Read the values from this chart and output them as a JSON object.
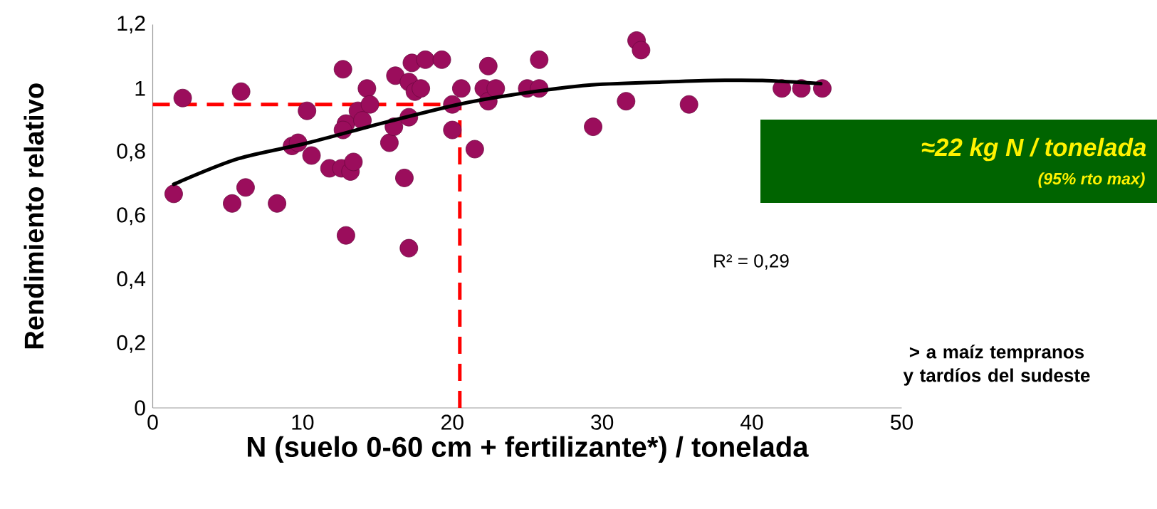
{
  "chart_data": {
    "type": "scatter",
    "xlabel": "N (suelo 0-60 cm + fertilizante*) / tonelada",
    "ylabel": "Rendimiento relativo",
    "xlim": [
      0,
      50
    ],
    "ylim": [
      0,
      1.2
    ],
    "xticks": [
      0,
      10,
      20,
      30,
      40,
      50
    ],
    "yticks": [
      0,
      {
        "value": 0.2,
        "label": "0,2"
      },
      {
        "value": 0.4,
        "label": "0,4"
      },
      {
        "value": 0.6,
        "label": "0,6"
      },
      {
        "value": 0.8,
        "label": "0,8"
      },
      1,
      {
        "value": 1.2,
        "label": "1,2"
      }
    ],
    "series": [
      {
        "type": "scatter",
        "marker": "circle",
        "color": "#9b0d5c",
        "x": [
          1.4,
          2.0,
          5.9,
          5.3,
          6.2,
          8.3,
          10.3,
          9.3,
          9.7,
          10.6,
          11.8,
          12.6,
          13.2,
          13.4,
          12.9,
          12.7,
          12.9,
          12.7,
          13.7,
          14.0,
          14.3,
          14.5,
          15.8,
          16.1,
          16.2,
          16.8,
          17.1,
          17.1,
          17.1,
          17.5,
          17.9,
          17.3,
          18.2,
          19.3,
          20.0,
          20.0,
          20.6,
          21.5,
          22.4,
          22.1,
          22.4,
          22.9,
          25.8,
          25.0,
          25.8,
          29.4,
          31.6,
          32.3,
          32.6,
          35.8,
          42.0,
          43.3,
          44.7
        ],
        "values": [
          0.67,
          0.97,
          0.99,
          0.64,
          0.69,
          0.64,
          0.93,
          0.82,
          0.83,
          0.79,
          0.75,
          0.75,
          0.74,
          0.77,
          0.54,
          1.06,
          0.89,
          0.87,
          0.93,
          0.9,
          1.0,
          0.95,
          0.83,
          0.88,
          1.04,
          0.72,
          0.5,
          0.91,
          1.02,
          0.99,
          1.0,
          1.08,
          1.09,
          1.09,
          0.95,
          0.87,
          1.0,
          0.81,
          1.07,
          1.0,
          0.96,
          1.0,
          1.09,
          1.0,
          1.0,
          0.88,
          0.96,
          1.15,
          1.12,
          0.95,
          1.0,
          1.0,
          1.0
        ]
      },
      {
        "type": "line",
        "color": "#000000",
        "marker": "none",
        "x": [
          1.4,
          5.7,
          10.4,
          15.2,
          20.4,
          24.0,
          29.0,
          34.0,
          37.4,
          40.7,
          44.6
        ],
        "values": [
          0.7,
          0.78,
          0.83,
          0.89,
          0.95,
          0.98,
          1.01,
          1.02,
          1.025,
          1.025,
          1.015
        ]
      }
    ],
    "ref_lines": [
      {
        "axis": "y",
        "value": 0.95,
        "color": "#ff0000",
        "line_style": "dashed"
      },
      {
        "axis": "x",
        "value": 20.5,
        "color": "#ff0000",
        "line_style": "dashed"
      }
    ],
    "annotations": [
      "≈22 kg N / tonelada",
      "(95% rto max)",
      "R² = 0,29",
      "> a maíz tempranos y tardíos del sudeste"
    ]
  }
}
